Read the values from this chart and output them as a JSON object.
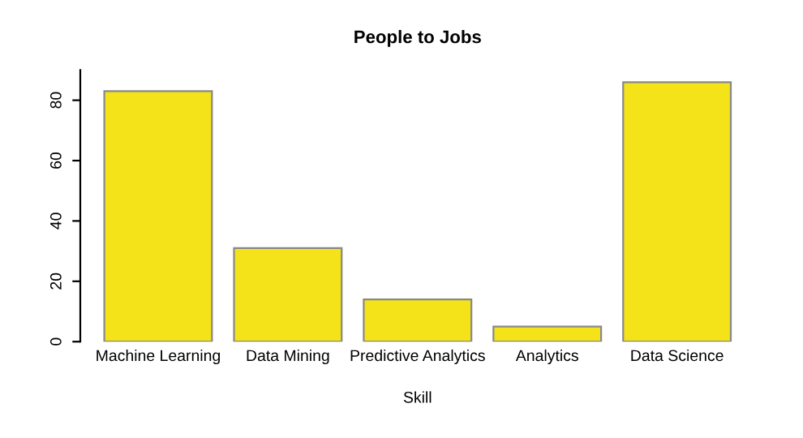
{
  "chart_data": {
    "type": "bar",
    "title": "People to Jobs",
    "xlabel": "Skill",
    "categories": [
      "Machine Learning",
      "Data Mining",
      "Predictive Analytics",
      "Analytics",
      "Data Science"
    ],
    "values": [
      83,
      31,
      14,
      5,
      86
    ],
    "color": "#f5e31a",
    "ylim": [
      0,
      90
    ],
    "yticks": [
      0,
      20,
      40,
      60,
      80
    ],
    "grid": false,
    "legend": false
  }
}
